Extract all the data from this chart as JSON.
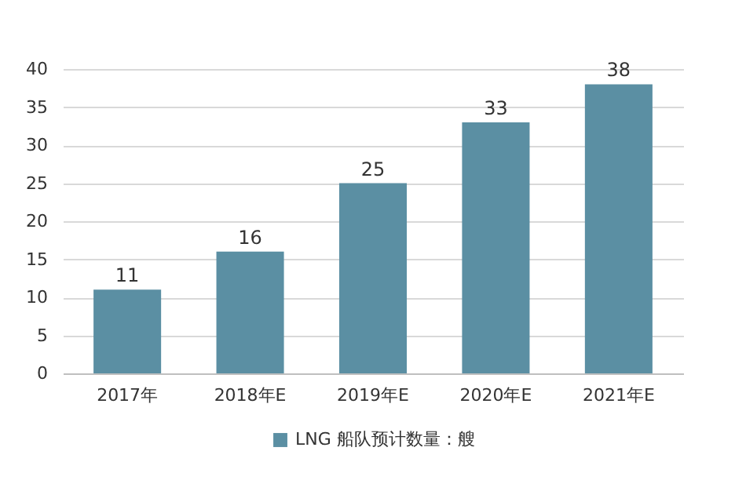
{
  "chart_data": {
    "type": "bar",
    "categories": [
      "2017年",
      "2018年E",
      "2019年E",
      "2020年E",
      "2021年E"
    ],
    "series": [
      {
        "name": "LNG 船队预计数量：艘",
        "color": "#5b8fa3",
        "values": [
          11,
          16,
          25,
          33,
          38
        ]
      }
    ],
    "ylim": [
      0,
      40
    ],
    "yticks": [
      0,
      5,
      10,
      15,
      20,
      25,
      30,
      35,
      40
    ],
    "grid": "y",
    "legend": "bottom",
    "data_labels": true
  }
}
